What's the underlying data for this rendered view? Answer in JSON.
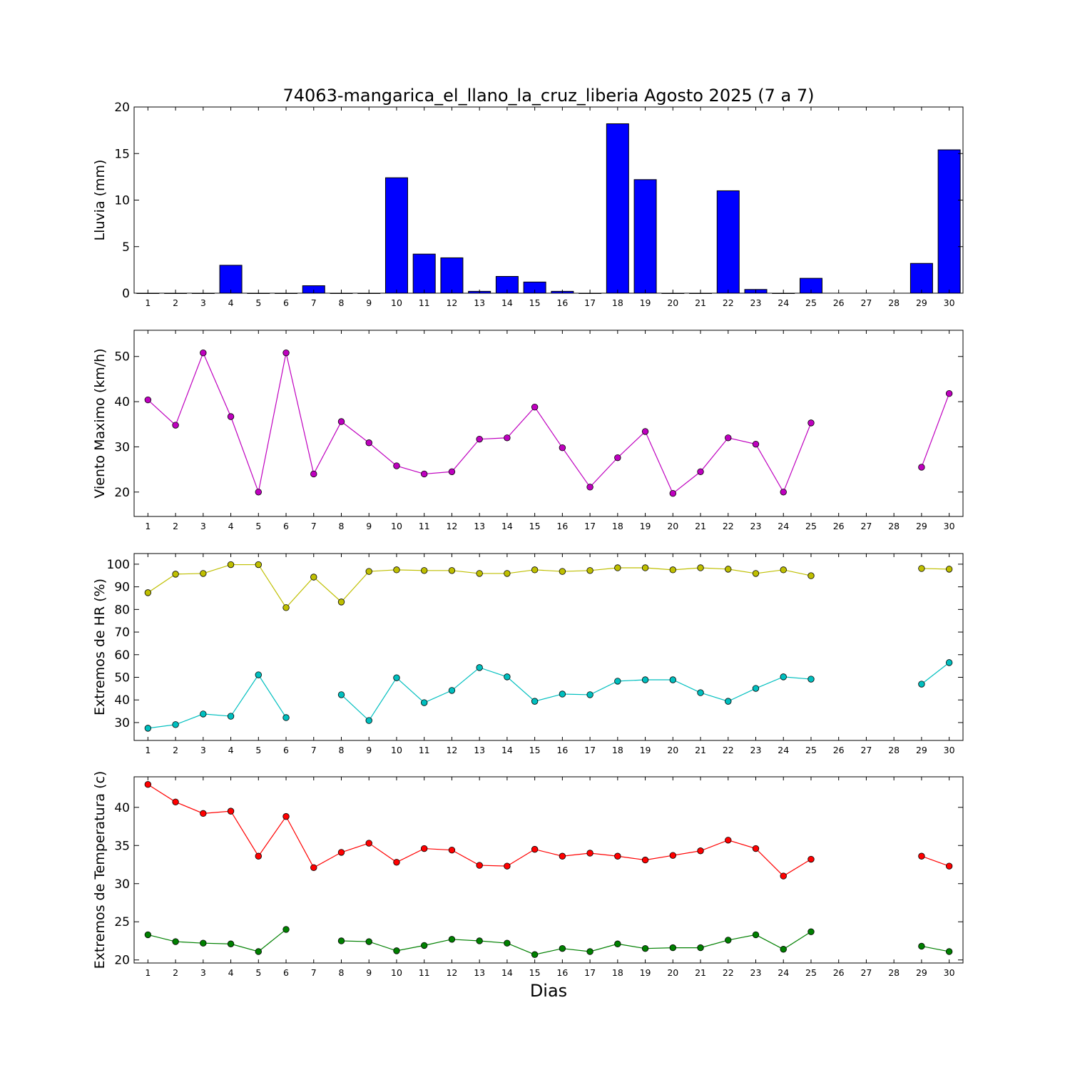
{
  "chart_data": [
    {
      "type": "bar",
      "title": "74063-mangarica_el_llano_la_cruz_liberia Agosto 2025  (7 a 7)",
      "ylabel": "Lluvia (mm)",
      "xlabel": "",
      "x": [
        1,
        2,
        3,
        4,
        5,
        6,
        7,
        8,
        9,
        10,
        11,
        12,
        13,
        14,
        15,
        16,
        17,
        18,
        19,
        20,
        21,
        22,
        23,
        24,
        25,
        26,
        27,
        28,
        29,
        30
      ],
      "ylim": [
        0,
        20
      ],
      "yticks": [
        0,
        5,
        10,
        15,
        20
      ],
      "series": [
        {
          "name": "Lluvia",
          "color": "#0000ff",
          "values": [
            0,
            0,
            0,
            3.0,
            0,
            0,
            0.8,
            0,
            0,
            12.4,
            4.2,
            3.8,
            0.2,
            1.8,
            1.2,
            0.2,
            0,
            18.2,
            12.2,
            0,
            0,
            11.0,
            0.4,
            0,
            1.6,
            null,
            null,
            null,
            3.2,
            15.4
          ]
        }
      ]
    },
    {
      "type": "line",
      "ylabel": "Viento Maximo (km/h)",
      "x": [
        1,
        2,
        3,
        4,
        5,
        6,
        7,
        8,
        9,
        10,
        11,
        12,
        13,
        14,
        15,
        16,
        17,
        18,
        19,
        20,
        21,
        22,
        23,
        24,
        25,
        26,
        27,
        28,
        29,
        30
      ],
      "ylim": [
        14.6,
        55.8
      ],
      "yticks": [
        20,
        30,
        40,
        50
      ],
      "series": [
        {
          "name": "Viento Maximo",
          "color": "#bf00bf",
          "values": [
            40.4,
            34.8,
            50.8,
            36.7,
            20.0,
            50.8,
            24.0,
            35.6,
            30.9,
            25.8,
            24.0,
            24.5,
            31.7,
            32.0,
            38.8,
            29.8,
            21.1,
            27.6,
            33.4,
            19.7,
            24.5,
            32.0,
            30.6,
            20.0,
            35.3,
            null,
            null,
            null,
            25.5,
            41.8
          ]
        }
      ]
    },
    {
      "type": "line",
      "ylabel": "Extremos de HR (%)",
      "x": [
        1,
        2,
        3,
        4,
        5,
        6,
        7,
        8,
        9,
        10,
        11,
        12,
        13,
        14,
        15,
        16,
        17,
        18,
        19,
        20,
        21,
        22,
        23,
        24,
        25,
        26,
        27,
        28,
        29,
        30
      ],
      "ylim": [
        22.1,
        104.7
      ],
      "yticks": [
        30,
        40,
        50,
        60,
        70,
        80,
        90,
        100
      ],
      "series": [
        {
          "name": "HR maxima",
          "color": "#bfbf00",
          "values": [
            87.4,
            95.6,
            95.9,
            99.8,
            99.8,
            80.8,
            94.3,
            83.3,
            96.8,
            97.5,
            97.2,
            97.2,
            95.9,
            95.9,
            97.5,
            96.8,
            97.2,
            98.4,
            98.4,
            97.5,
            98.4,
            97.8,
            95.9,
            97.5,
            94.9,
            null,
            null,
            null,
            98.1,
            97.8
          ]
        },
        {
          "name": "HR minima",
          "color": "#00bfbf",
          "values": [
            27.5,
            29.1,
            33.8,
            32.8,
            51.1,
            32.2,
            null,
            42.3,
            30.9,
            49.8,
            38.8,
            44.2,
            54.3,
            50.2,
            39.4,
            42.6,
            42.3,
            48.3,
            48.9,
            48.9,
            43.2,
            39.4,
            45.1,
            50.2,
            49.2,
            null,
            null,
            null,
            47.0,
            56.5
          ]
        }
      ]
    },
    {
      "type": "line",
      "ylabel": "Extremos de Temperatura (c)",
      "xlabel": "Dias",
      "x": [
        1,
        2,
        3,
        4,
        5,
        6,
        7,
        8,
        9,
        10,
        11,
        12,
        13,
        14,
        15,
        16,
        17,
        18,
        19,
        20,
        21,
        22,
        23,
        24,
        25,
        26,
        27,
        28,
        29,
        30
      ],
      "ylim": [
        19.6,
        44.0
      ],
      "yticks": [
        20,
        25,
        30,
        35,
        40
      ],
      "series": [
        {
          "name": "Temperatura maxima",
          "color": "#ff0000",
          "values": [
            43.0,
            40.7,
            39.2,
            39.5,
            33.6,
            38.8,
            32.1,
            34.1,
            35.3,
            32.8,
            34.6,
            34.4,
            32.4,
            32.3,
            34.5,
            33.6,
            34.0,
            33.6,
            33.1,
            33.7,
            34.3,
            35.7,
            34.6,
            31.0,
            33.2,
            null,
            null,
            null,
            33.6,
            32.3
          ]
        },
        {
          "name": "Temperatura minima",
          "color": "#008000",
          "values": [
            23.3,
            22.4,
            22.2,
            22.1,
            21.1,
            24.0,
            null,
            22.5,
            22.4,
            21.2,
            21.9,
            22.7,
            22.5,
            22.2,
            20.7,
            21.5,
            21.1,
            22.1,
            21.5,
            21.6,
            21.6,
            22.6,
            23.3,
            21.4,
            23.7,
            null,
            null,
            null,
            21.8,
            21.1
          ]
        }
      ]
    }
  ]
}
